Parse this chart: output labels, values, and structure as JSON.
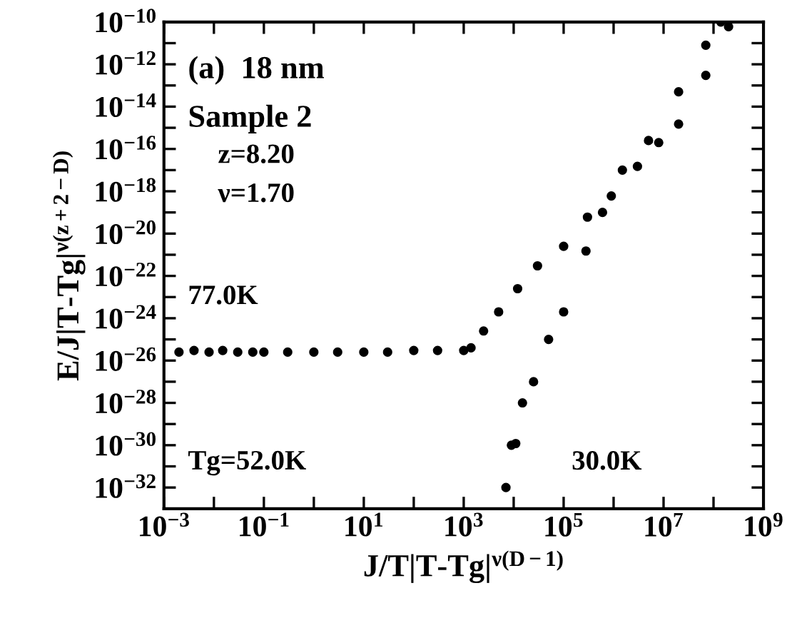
{
  "chart_data": {
    "type": "scatter",
    "xlabel": "J/T|T-Tg|$^{ν(D−1)}$",
    "ylabel": "E/J|T-Tg|$^{ν(z+2−D)}$",
    "log": "xy",
    "marker": "circle",
    "grid": false,
    "xlim": [
      0.001,
      1000000000.0
    ],
    "ylim": [
      1e-33,
      1e-10
    ],
    "xticks": [
      {
        "value": 0.001,
        "label": "10$^{−3}$"
      },
      {
        "value": 0.01,
        "label": null
      },
      {
        "value": 0.1,
        "label": "10$^{−1}$"
      },
      {
        "value": 1,
        "label": null
      },
      {
        "value": 10,
        "label": "10$^{1}$"
      },
      {
        "value": 100,
        "label": null
      },
      {
        "value": 1000.0,
        "label": "10$^{3}$"
      },
      {
        "value": 10000.0,
        "label": null
      },
      {
        "value": 100000.0,
        "label": "10$^{5}$"
      },
      {
        "value": 1000000.0,
        "label": null
      },
      {
        "value": 10000000.0,
        "label": "10$^{7}$"
      },
      {
        "value": 100000000.0,
        "label": null
      },
      {
        "value": 1000000000.0,
        "label": "10$^{9}$"
      }
    ],
    "yticks": [
      {
        "value": 1e-32,
        "label": "10$^{−32}$"
      },
      {
        "value": 1e-31,
        "label": null
      },
      {
        "value": 1e-30,
        "label": "10$^{−30}$"
      },
      {
        "value": 1e-29,
        "label": null
      },
      {
        "value": 1e-28,
        "label": "10$^{−28}$"
      },
      {
        "value": 1e-27,
        "label": null
      },
      {
        "value": 1e-26,
        "label": "10$^{−26}$"
      },
      {
        "value": 1e-25,
        "label": null
      },
      {
        "value": 1e-24,
        "label": "10$^{−24}$"
      },
      {
        "value": 1e-23,
        "label": null
      },
      {
        "value": 1e-22,
        "label": "10$^{−22}$"
      },
      {
        "value": 1e-21,
        "label": null
      },
      {
        "value": 1e-20,
        "label": "10$^{−20}$"
      },
      {
        "value": 1e-19,
        "label": null
      },
      {
        "value": 1e-18,
        "label": "10$^{−18}$"
      },
      {
        "value": 1e-17,
        "label": null
      },
      {
        "value": 1e-16,
        "label": "10$^{−16}$"
      },
      {
        "value": 1e-15,
        "label": null
      },
      {
        "value": 1e-14,
        "label": "10$^{−14}$"
      },
      {
        "value": 1e-13,
        "label": null
      },
      {
        "value": 1e-12,
        "label": "10$^{−12}$"
      },
      {
        "value": 1e-11,
        "label": null
      },
      {
        "value": 1e-10,
        "label": "10$^{−10}$"
      }
    ],
    "series": [
      {
        "color": "#000000",
        "x": [
          0.002,
          0.004,
          0.008,
          0.015,
          0.03,
          0.06,
          0.1,
          0.3,
          1,
          3,
          10,
          30,
          100,
          300,
          1000,
          1400,
          2500,
          5000,
          12000,
          30000,
          100000,
          300000,
          900000,
          3000000,
          8000000,
          20000000,
          70000000,
          200000000
        ],
        "values": [
          2.5e-26,
          3e-26,
          2.5e-26,
          3e-26,
          2.5e-26,
          2.5e-26,
          2.5e-26,
          2.5e-26,
          2.5e-26,
          2.5e-26,
          2.5e-26,
          2.5e-26,
          3e-26,
          3e-26,
          3e-26,
          4e-26,
          2.5e-25,
          2e-24,
          2.5e-23,
          3e-22,
          2.5e-21,
          6e-20,
          6e-19,
          1.5e-17,
          2e-16,
          1.5e-15,
          3e-13,
          6e-11
        ]
      },
      {
        "color": "#000000",
        "x": [
          7000,
          9000,
          11000,
          15000,
          25000,
          50000,
          100000,
          280000,
          600000,
          1500000,
          5000000,
          20000000,
          70000000,
          140000000
        ],
        "values": [
          1e-32,
          1e-30,
          1.2e-30,
          1e-28,
          1e-27,
          1e-25,
          2e-24,
          1.5e-21,
          1e-19,
          1e-17,
          2.5e-16,
          5e-14,
          8e-12,
          1e-10
        ]
      }
    ],
    "annotations": [
      "(a)  18 nm",
      "Sample 2",
      "z=8.20",
      "ν=1.70",
      "77.0K",
      "30.0K",
      "Tg=52.0K"
    ]
  }
}
